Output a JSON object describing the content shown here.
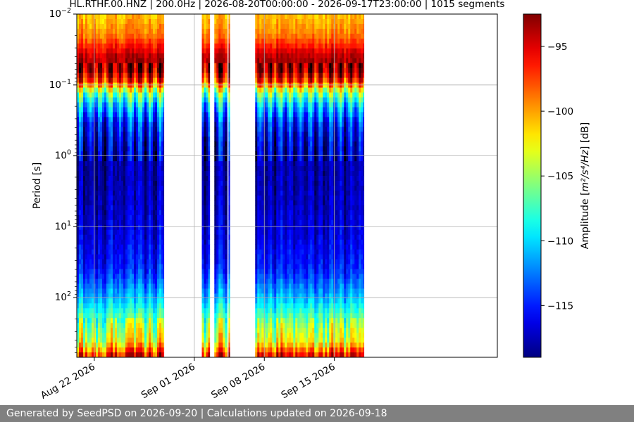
{
  "chart_data": {
    "type": "heatmap",
    "title": "HL.RTHF.00.HNZ | 200.0Hz | 2026-08-20T00:00:00 - 2026-09-17T23:00:00 | 1015 segments",
    "ylabel": "Period [s]",
    "xlabel": "",
    "y_scale": "log",
    "y_inverted": true,
    "ylim": [
      0.01,
      700
    ],
    "xlim": [
      "2026-08-20T06:00",
      "2026-09-17T23:00"
    ],
    "x_ticks": [
      {
        "date": "2026-08-22",
        "label": "Aug 22 2026"
      },
      {
        "date": "2026-09-01",
        "label": "Sep 01 2026"
      },
      {
        "date": "2026-09-08",
        "label": "Sep 08 2026"
      },
      {
        "date": "2026-09-15",
        "label": "Sep 15 2026"
      }
    ],
    "y_ticks": [
      {
        "value": 0.01,
        "base": "10",
        "exp": "−2"
      },
      {
        "value": 0.1,
        "base": "10",
        "exp": "−1"
      },
      {
        "value": 1,
        "base": "10",
        "exp": "0"
      },
      {
        "value": 10,
        "base": "10",
        "exp": "1"
      },
      {
        "value": 100,
        "base": "10",
        "exp": "2"
      }
    ],
    "grid": true,
    "data_intervals": [
      [
        "2026-08-20T06:00",
        "2026-08-28T23:00"
      ],
      [
        "2026-09-01T18:00",
        "2026-09-02T13:00"
      ],
      [
        "2026-09-03T00:00",
        "2026-09-04T07:00"
      ],
      [
        "2026-09-04T10:00",
        "2026-09-04T13:00"
      ],
      [
        "2026-09-07T02:00",
        "2026-09-17T23:00"
      ]
    ],
    "psd_profile_db": [
      {
        "period": 0.01,
        "db": -101
      },
      {
        "period": 0.02,
        "db": -99
      },
      {
        "period": 0.04,
        "db": -94
      },
      {
        "period": 0.06,
        "db": -93
      },
      {
        "period": 0.09,
        "db": -97
      },
      {
        "period": 0.13,
        "db": -106
      },
      {
        "period": 0.2,
        "db": -111
      },
      {
        "period": 0.35,
        "db": -115
      },
      {
        "period": 0.7,
        "db": -117
      },
      {
        "period": 1.5,
        "db": -118
      },
      {
        "period": 5,
        "db": -117.5
      },
      {
        "period": 15,
        "db": -116.5
      },
      {
        "period": 40,
        "db": -115
      },
      {
        "period": 100,
        "db": -111
      },
      {
        "period": 250,
        "db": -105
      },
      {
        "period": 420,
        "db": -103
      },
      {
        "period": 700,
        "db": -95
      }
    ],
    "colorbar": {
      "label_pre": "Amplitude [",
      "label_math": "m²/s⁴/Hz",
      "label_post": "] [dB]",
      "range": [
        -119,
        -92.5
      ],
      "colormap": "jet",
      "ticks": [
        "−95",
        "−100",
        "−105",
        "−110",
        "−115"
      ],
      "tick_values": [
        -95,
        -100,
        -105,
        -110,
        -115
      ]
    }
  },
  "footer": {
    "text": "Generated by SeedPSD on 2026-09-20 | Calculations updated on 2026-09-18"
  }
}
